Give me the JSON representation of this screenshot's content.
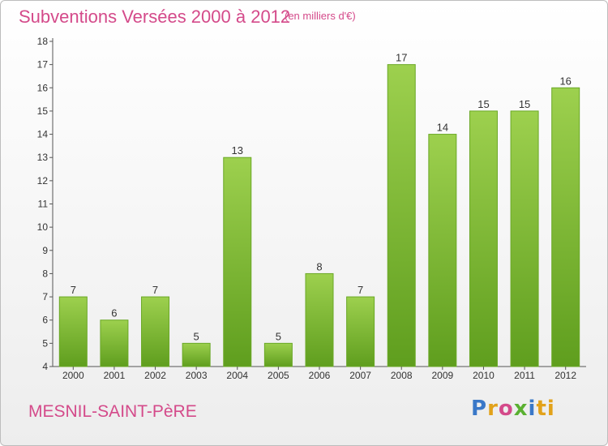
{
  "header": {
    "title": "Subventions Versées 2000 à 2012",
    "unit": "(en milliers d'€)"
  },
  "footer": {
    "commune": "MESNIL-SAINT-PèRE",
    "logo_letters": [
      "P",
      "r",
      "o",
      "x",
      "i",
      "ti"
    ]
  },
  "colors": {
    "bar": "#7dbd32",
    "bar_light": "#9dd04e",
    "axis": "#555555",
    "text_accent": "#d44a8a"
  },
  "chart_data": {
    "type": "bar",
    "title": "Subventions Versées 2000 à 2012",
    "subtitle": "(en milliers d'€)",
    "categories": [
      "2000",
      "2001",
      "2002",
      "2003",
      "2004",
      "2005",
      "2006",
      "2007",
      "2008",
      "2009",
      "2010",
      "2011",
      "2012"
    ],
    "values": [
      7,
      6,
      7,
      5,
      13,
      5,
      8,
      7,
      17,
      14,
      15,
      15,
      16
    ],
    "ylim": [
      4,
      18
    ],
    "yticks": [
      4,
      5,
      6,
      7,
      8,
      9,
      10,
      11,
      12,
      13,
      14,
      15,
      16,
      17,
      18
    ],
    "grid": false,
    "legend": "none"
  }
}
